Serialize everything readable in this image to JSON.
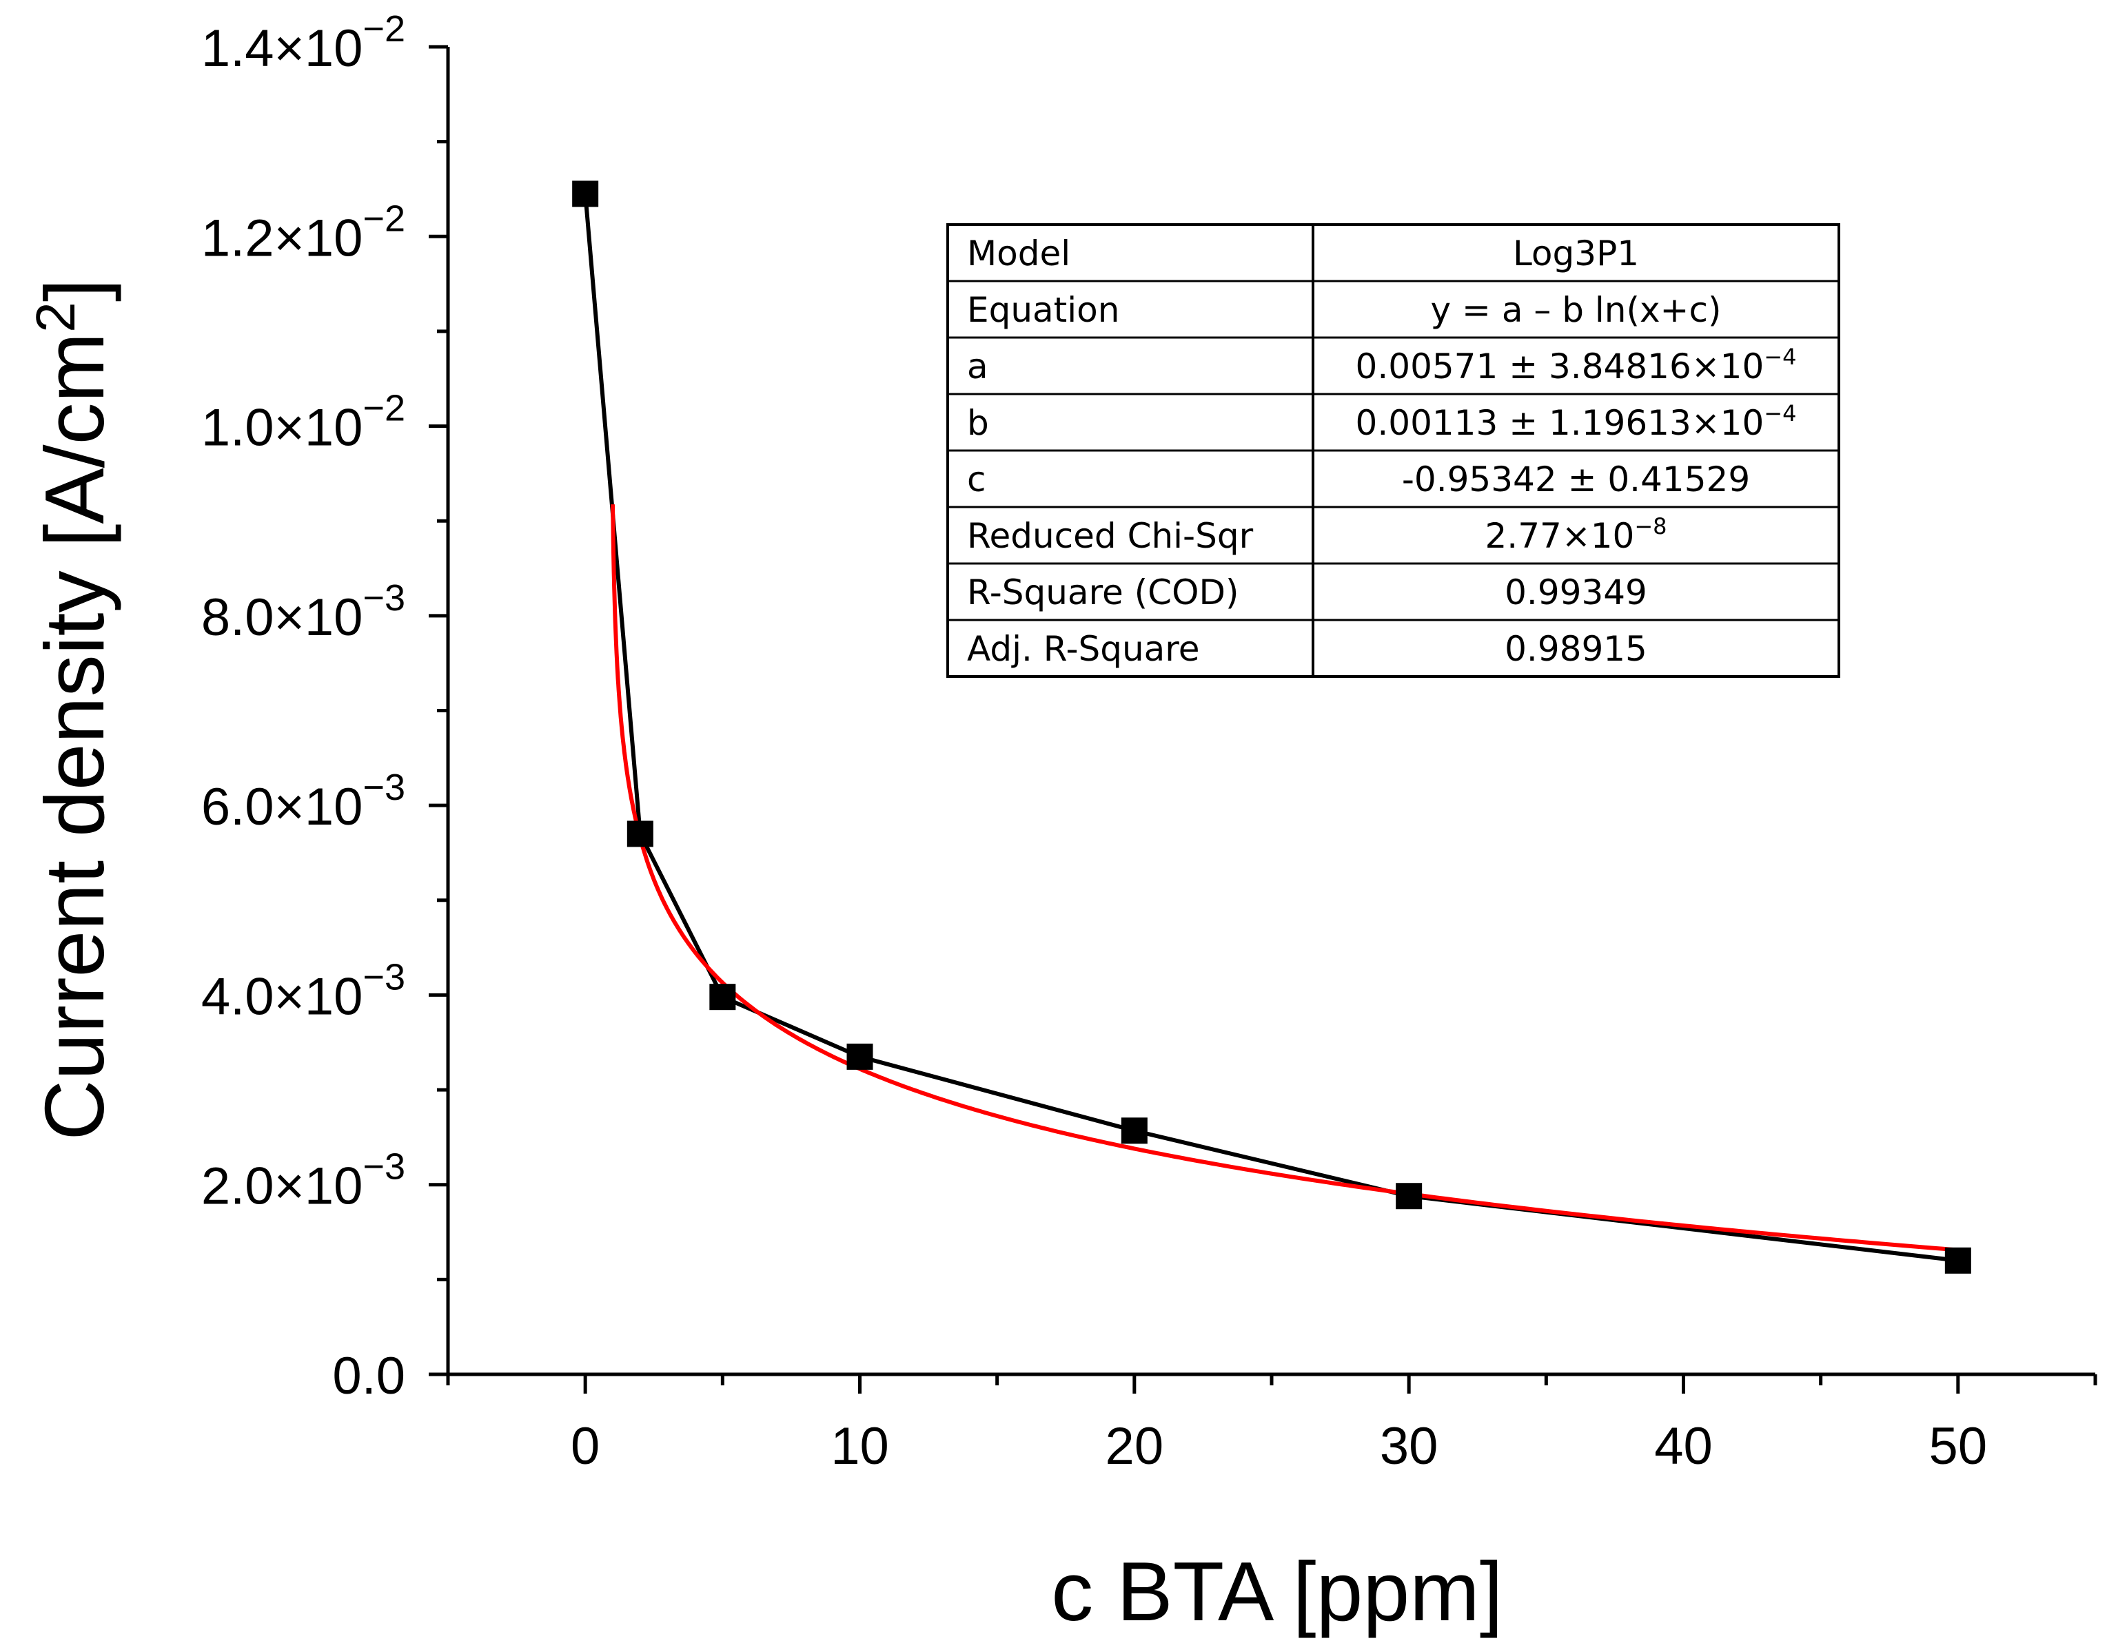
{
  "chart_data": {
    "type": "line",
    "xlabel": "c BTA [ppm]",
    "ylabel": {
      "main": "Current density [A/cm",
      "sup": "2",
      "end": "]"
    },
    "xlim": [
      -5,
      55
    ],
    "ylim": [
      0,
      0.014
    ],
    "x_ticks": [
      {
        "value": 0,
        "label": "0"
      },
      {
        "value": 10,
        "label": "10"
      },
      {
        "value": 20,
        "label": "20"
      },
      {
        "value": 30,
        "label": "30"
      },
      {
        "value": 40,
        "label": "40"
      },
      {
        "value": 50,
        "label": "50"
      }
    ],
    "y_ticks": [
      {
        "value": 0,
        "mant": "0.0",
        "exp": ""
      },
      {
        "value": 0.002,
        "mant": "2.0×10",
        "exp": "−3"
      },
      {
        "value": 0.004,
        "mant": "4.0×10",
        "exp": "−3"
      },
      {
        "value": 0.006,
        "mant": "6.0×10",
        "exp": "−3"
      },
      {
        "value": 0.008,
        "mant": "8.0×10",
        "exp": "−3"
      },
      {
        "value": 0.01,
        "mant": "1.0×10",
        "exp": "−2"
      },
      {
        "value": 0.012,
        "mant": "1.2×10",
        "exp": "−2"
      },
      {
        "value": 0.014,
        "mant": "1.4×10",
        "exp": "−2"
      }
    ],
    "series": [
      {
        "name": "Current density",
        "color": "#000000",
        "marker": "square",
        "x": [
          0,
          2,
          5,
          10,
          20,
          30,
          50
        ],
        "y": [
          0.01245,
          0.0057,
          0.00398,
          0.00335,
          0.00257,
          0.00188,
          0.0012
        ]
      },
      {
        "name": "Log3P1 fit",
        "color": "#ff0000",
        "marker": "none",
        "fit": {
          "model": "Log3P1",
          "a": 0.00571,
          "b": 0.00113,
          "c": -0.95342
        },
        "x_range": [
          1.0,
          50
        ]
      }
    ],
    "fit_table": {
      "rows": [
        {
          "label": "Model",
          "value": "Log3P1",
          "val_exp": ""
        },
        {
          "label": "Equation",
          "value": "y = a – b ln(x+c)",
          "val_exp": ""
        },
        {
          "label": "a",
          "value": "0.00571 ± 3.84816×10",
          "val_exp": "−4"
        },
        {
          "label": "b",
          "value": "0.00113 ± 1.19613×10",
          "val_exp": "−4"
        },
        {
          "label": "c",
          "value": "-0.95342 ± 0.41529",
          "val_exp": ""
        },
        {
          "label": "Reduced Chi-Sqr",
          "value": "2.77×10",
          "val_exp": "−8"
        },
        {
          "label": "R-Square (COD)",
          "value": "0.99349",
          "val_exp": ""
        },
        {
          "label": "Adj. R-Square",
          "value": "0.98915",
          "val_exp": ""
        }
      ]
    }
  }
}
